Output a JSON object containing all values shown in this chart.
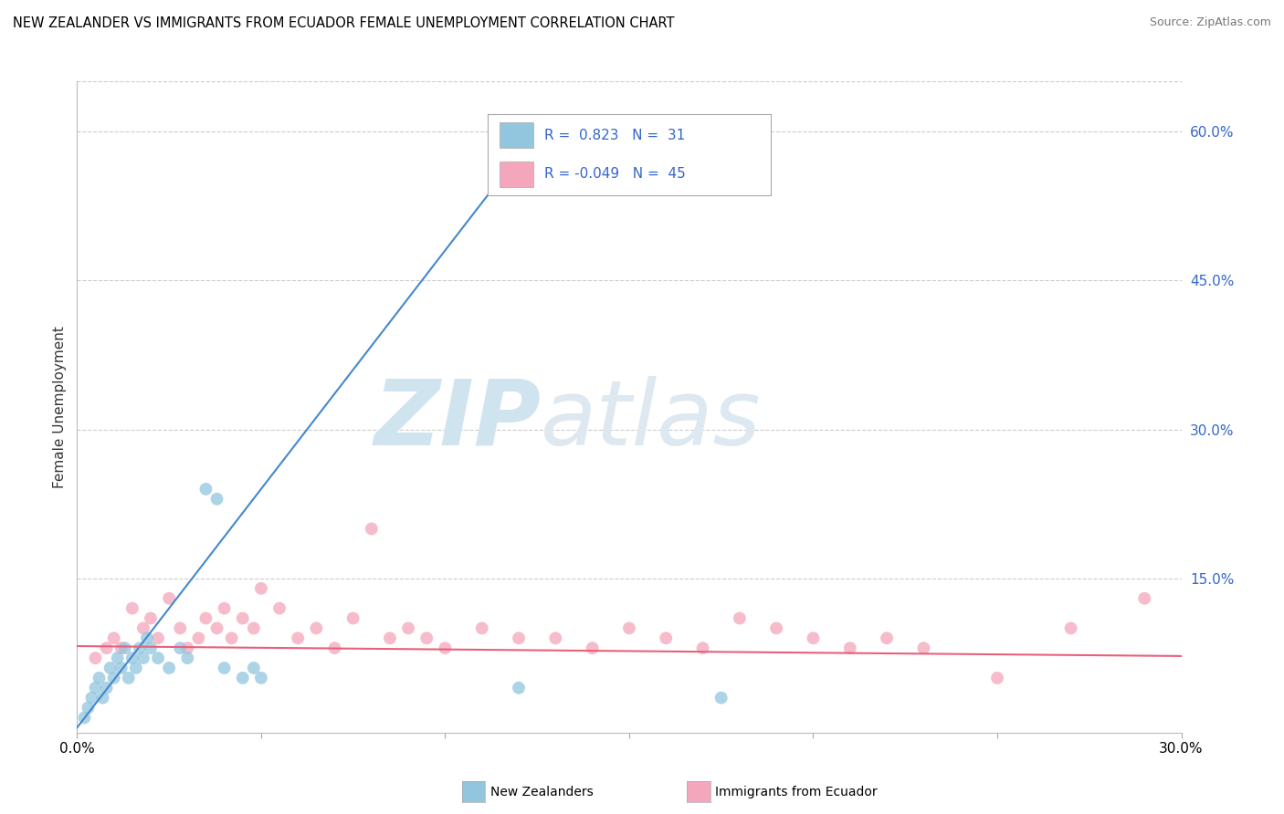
{
  "title": "NEW ZEALANDER VS IMMIGRANTS FROM ECUADOR FEMALE UNEMPLOYMENT CORRELATION CHART",
  "source": "Source: ZipAtlas.com",
  "ylabel": "Female Unemployment",
  "xlim": [
    0.0,
    0.3
  ],
  "ylim": [
    -0.005,
    0.65
  ],
  "xticks": [
    0.0,
    0.05,
    0.1,
    0.15,
    0.2,
    0.25,
    0.3
  ],
  "xticklabels": [
    "0.0%",
    "",
    "",
    "",
    "",
    "",
    "30.0%"
  ],
  "yticks_right": [
    0.15,
    0.3,
    0.45,
    0.6
  ],
  "ytick_right_labels": [
    "15.0%",
    "30.0%",
    "45.0%",
    "60.0%"
  ],
  "R_blue": 0.823,
  "N_blue": 31,
  "R_pink": -0.049,
  "N_pink": 45,
  "blue_color": "#92c5de",
  "blue_line_color": "#4488cc",
  "pink_color": "#f4a6bc",
  "pink_line_color": "#e8607a",
  "watermark_zip": "ZIP",
  "watermark_atlas": "atlas",
  "watermark_color": "#d0e4f0",
  "blue_line_x": [
    0.0,
    0.125
  ],
  "blue_line_y": [
    0.0,
    0.6
  ],
  "pink_line_x": [
    0.0,
    0.3
  ],
  "pink_line_y": [
    0.082,
    0.072
  ],
  "blue_scatter_x": [
    0.002,
    0.003,
    0.004,
    0.005,
    0.006,
    0.007,
    0.008,
    0.009,
    0.01,
    0.011,
    0.012,
    0.013,
    0.014,
    0.015,
    0.016,
    0.017,
    0.018,
    0.019,
    0.02,
    0.022,
    0.025,
    0.028,
    0.03,
    0.035,
    0.038,
    0.04,
    0.045,
    0.048,
    0.05,
    0.12,
    0.175
  ],
  "blue_scatter_y": [
    0.01,
    0.02,
    0.03,
    0.04,
    0.05,
    0.03,
    0.04,
    0.06,
    0.05,
    0.07,
    0.06,
    0.08,
    0.05,
    0.07,
    0.06,
    0.08,
    0.07,
    0.09,
    0.08,
    0.07,
    0.06,
    0.08,
    0.07,
    0.24,
    0.23,
    0.06,
    0.05,
    0.06,
    0.05,
    0.04,
    0.03
  ],
  "pink_scatter_x": [
    0.005,
    0.008,
    0.01,
    0.012,
    0.015,
    0.018,
    0.02,
    0.022,
    0.025,
    0.028,
    0.03,
    0.033,
    0.035,
    0.038,
    0.04,
    0.042,
    0.045,
    0.048,
    0.05,
    0.055,
    0.06,
    0.065,
    0.07,
    0.075,
    0.08,
    0.085,
    0.09,
    0.095,
    0.1,
    0.11,
    0.12,
    0.13,
    0.14,
    0.15,
    0.16,
    0.17,
    0.18,
    0.19,
    0.2,
    0.21,
    0.22,
    0.23,
    0.25,
    0.27,
    0.29
  ],
  "pink_scatter_y": [
    0.07,
    0.08,
    0.09,
    0.08,
    0.12,
    0.1,
    0.11,
    0.09,
    0.13,
    0.1,
    0.08,
    0.09,
    0.11,
    0.1,
    0.12,
    0.09,
    0.11,
    0.1,
    0.14,
    0.12,
    0.09,
    0.1,
    0.08,
    0.11,
    0.2,
    0.09,
    0.1,
    0.09,
    0.08,
    0.1,
    0.09,
    0.09,
    0.08,
    0.1,
    0.09,
    0.08,
    0.11,
    0.1,
    0.09,
    0.08,
    0.09,
    0.08,
    0.05,
    0.1,
    0.13
  ]
}
